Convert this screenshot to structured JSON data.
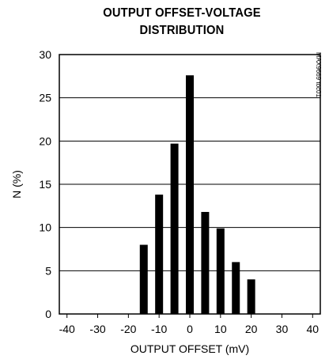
{
  "chart_data": {
    "type": "bar",
    "title_lines": [
      "OUTPUT OFFSET-VOLTAGE",
      "DISTRIBUTION"
    ],
    "xlabel": "OUTPUT OFFSET (mV)",
    "ylabel": "N (%)",
    "xlim": [
      -42.5,
      42.5
    ],
    "ylim": [
      0,
      30
    ],
    "xticks": [
      -40,
      -30,
      -20,
      -10,
      0,
      10,
      20,
      30,
      40
    ],
    "yticks": [
      0,
      5,
      10,
      15,
      20,
      25,
      30
    ],
    "grid": "horizontal",
    "x": [
      -15,
      -10,
      -5,
      0,
      5,
      10,
      15,
      20
    ],
    "values": [
      8,
      13.8,
      19.7,
      27.6,
      11.8,
      9.9,
      6,
      4
    ]
  },
  "watermark": "MAX9669 toc01",
  "colors": {
    "bar": "#000000",
    "grid": "#000000",
    "background": "#ffffff"
  }
}
